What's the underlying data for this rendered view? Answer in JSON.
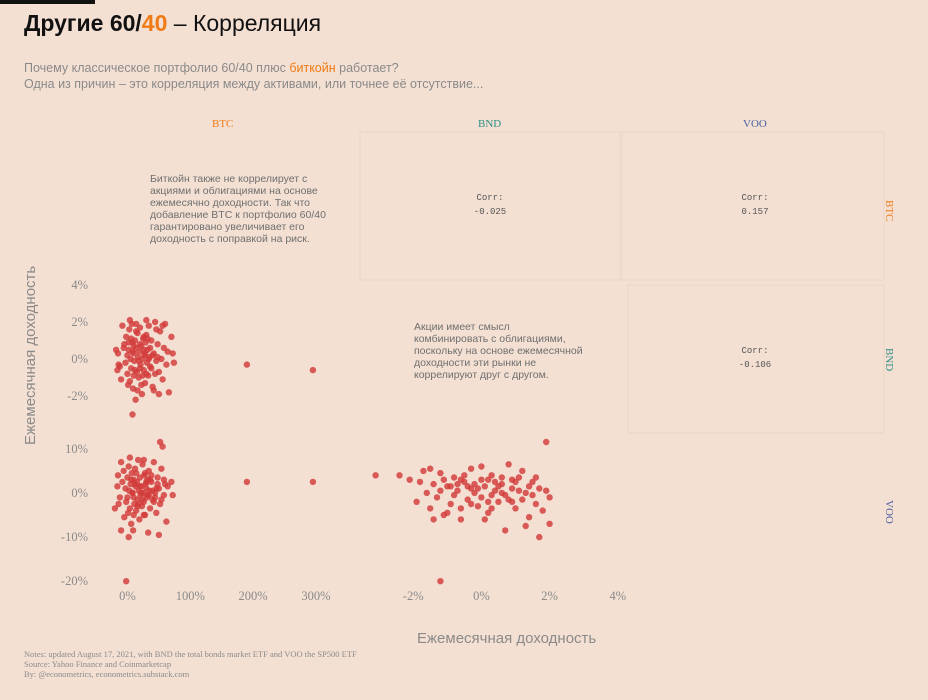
{
  "header": {
    "title_part1": "Другие 60/",
    "title_accent": "40",
    "title_part2": " – Корреляция",
    "subtitle_line1_a": "Почему классическое портфолио 60/40 плюс ",
    "subtitle_line1_accent": "биткойн",
    "subtitle_line1_b": " работает?",
    "subtitle_line2": "Одна из причин – это корреляция между активами, или точнее её отсутствие..."
  },
  "colors": {
    "BTC": "#f07b16",
    "BND": "#2f8f85",
    "VOO": "#4a5fa3",
    "points": "#d23a3a",
    "muted": "#8a8a8a"
  },
  "panels": {
    "columns": [
      "BTC",
      "BND",
      "VOO"
    ],
    "rows": [
      "BTC",
      "BND",
      "VOO"
    ]
  },
  "axes": {
    "xlabel": "Ежемесячная доходность",
    "ylabel": "Ежемесячная доходность"
  },
  "annotations": {
    "btc_note": [
      "Биткойн также не коррелирует с",
      "акциями и облигациями на основе",
      "ежемесячно доходности. Так что",
      "добавление BTC к портфолио 60/40",
      "гарантировано увеличивает его",
      "доходность с поправкой на риск."
    ],
    "bnd_note": [
      "Акции имеет смысл",
      "комбинировать с облигациями,",
      "поскольку на основе ежемесячной",
      "доходности эти рынки не",
      "коррелируют друг с другом."
    ]
  },
  "notes": {
    "line1": "Notes: updated August 17, 2021, with BND the total bonds market ETF and VOO the SP500 ETF",
    "line2": "Source: Yahoo Finance and Coinmarketcap",
    "line3": "By: @econometrics, econometrics.substack.com"
  },
  "chart_data": [
    {
      "type": "table",
      "panel": "correlations",
      "entries": [
        {
          "row": "BTC",
          "col": "BND",
          "label": "Corr:",
          "value": "-0.025"
        },
        {
          "row": "BTC",
          "col": "VOO",
          "label": "Corr:",
          "value": "0.157"
        },
        {
          "row": "BND",
          "col": "VOO",
          "label": "Corr:",
          "value": "-0.106"
        }
      ]
    },
    {
      "type": "scatter",
      "panel": "BND vs BTC",
      "x_axis": "BTC",
      "y_axis": "BND",
      "xlim": [
        -50,
        370
      ],
      "ylim": [
        -4,
        4
      ],
      "xticks": [
        "0%",
        "100%",
        "200%",
        "300%"
      ],
      "xtick_values": [
        0,
        100,
        200,
        300
      ],
      "yticks": [
        "4%",
        "2%",
        "0%",
        "-2%"
      ],
      "ytick_values": [
        4,
        2,
        0,
        -2
      ],
      "points": [
        [
          -15,
          0.3
        ],
        [
          -12,
          -0.4
        ],
        [
          -8,
          1.8
        ],
        [
          -5,
          0.8
        ],
        [
          -3,
          -0.2
        ],
        [
          -2,
          1.2
        ],
        [
          0,
          0.2
        ],
        [
          0,
          -0.8
        ],
        [
          2,
          0.5
        ],
        [
          3,
          1.6
        ],
        [
          4,
          -1.2
        ],
        [
          5,
          0.0
        ],
        [
          6,
          -0.5
        ],
        [
          7,
          1.9
        ],
        [
          8,
          0.9
        ],
        [
          9,
          -1.6
        ],
        [
          10,
          0.3
        ],
        [
          11,
          -0.1
        ],
        [
          12,
          1.0
        ],
        [
          13,
          -2.2
        ],
        [
          14,
          0.6
        ],
        [
          15,
          -0.7
        ],
        [
          16,
          1.4
        ],
        [
          17,
          0.1
        ],
        [
          18,
          -1.0
        ],
        [
          19,
          0.4
        ],
        [
          20,
          1.7
        ],
        [
          21,
          -0.3
        ],
        [
          22,
          0.7
        ],
        [
          23,
          -1.9
        ],
        [
          24,
          0.0
        ],
        [
          25,
          1.1
        ],
        [
          26,
          -0.6
        ],
        [
          27,
          0.2
        ],
        [
          28,
          -1.3
        ],
        [
          29,
          0.9
        ],
        [
          30,
          1.3
        ],
        [
          31,
          -0.2
        ],
        [
          32,
          0.5
        ],
        [
          33,
          -0.9
        ],
        [
          34,
          1.8
        ],
        [
          35,
          0.1
        ],
        [
          36,
          -0.4
        ],
        [
          38,
          1.0
        ],
        [
          40,
          -1.5
        ],
        [
          42,
          0.3
        ],
        [
          44,
          2.0
        ],
        [
          46,
          -0.1
        ],
        [
          48,
          0.8
        ],
        [
          50,
          -0.7
        ],
        [
          52,
          1.5
        ],
        [
          54,
          0.0
        ],
        [
          56,
          -1.1
        ],
        [
          58,
          0.6
        ],
        [
          60,
          1.9
        ],
        [
          62,
          -0.3
        ],
        [
          64,
          0.4
        ],
        [
          66,
          -1.8
        ],
        [
          70,
          1.2
        ],
        [
          -10,
          -1.1
        ],
        [
          -6,
          0.6
        ],
        [
          1,
          -1.4
        ],
        [
          6,
          1.1
        ],
        [
          10,
          -0.9
        ],
        [
          14,
          1.5
        ],
        [
          18,
          -0.1
        ],
        [
          22,
          -1.4
        ],
        [
          26,
          1.2
        ],
        [
          30,
          -0.8
        ],
        [
          34,
          0.0
        ],
        [
          38,
          -0.5
        ],
        [
          42,
          -1.7
        ],
        [
          46,
          1.6
        ],
        [
          -14,
          -0.3
        ],
        [
          2,
          0.9
        ],
        [
          8,
          0.4
        ],
        [
          12,
          -0.6
        ],
        [
          16,
          -1.7
        ],
        [
          20,
          0.8
        ],
        [
          24,
          -0.9
        ],
        [
          28,
          0.3
        ],
        [
          32,
          1.1
        ],
        [
          36,
          0.6
        ],
        [
          40,
          0.2
        ],
        [
          44,
          -0.8
        ],
        [
          48,
          0.1
        ],
        [
          8,
          -3.0
        ],
        [
          50,
          -1.9
        ],
        [
          72,
          0.3
        ],
        [
          74,
          -0.2
        ],
        [
          -18,
          0.5
        ],
        [
          -16,
          -0.6
        ],
        [
          4,
          2.1
        ],
        [
          14,
          1.9
        ],
        [
          30,
          2.1
        ],
        [
          56,
          1.8
        ],
        [
          20,
          -0.5
        ],
        [
          26,
          0.5
        ],
        [
          10,
          0.7
        ],
        [
          190,
          -0.3
        ],
        [
          295,
          -0.6
        ]
      ]
    },
    {
      "type": "scatter",
      "panel": "VOO vs BTC",
      "x_axis": "BTC",
      "y_axis": "VOO",
      "xlim": [
        -50,
        370
      ],
      "ylim": [
        -22,
        12
      ],
      "xticks": [
        "0%",
        "100%",
        "200%",
        "300%"
      ],
      "xtick_values": [
        0,
        100,
        200,
        300
      ],
      "yticks": [
        "10%",
        "0%",
        "-10%",
        "-20%"
      ],
      "ytick_values": [
        10,
        0,
        -10,
        -20
      ],
      "points": [
        [
          -20,
          -3.5
        ],
        [
          -15,
          4.0
        ],
        [
          -12,
          -1.0
        ],
        [
          -10,
          7.0
        ],
        [
          -8,
          2.5
        ],
        [
          -5,
          -5.5
        ],
        [
          -3,
          1.0
        ],
        [
          -2,
          -2.0
        ],
        [
          0,
          3.5
        ],
        [
          0,
          -1.0
        ],
        [
          2,
          6.0
        ],
        [
          3,
          0.5
        ],
        [
          4,
          -3.5
        ],
        [
          5,
          2.0
        ],
        [
          6,
          -7.0
        ],
        [
          7,
          4.5
        ],
        [
          8,
          0.0
        ],
        [
          9,
          -8.5
        ],
        [
          10,
          3.0
        ],
        [
          11,
          -2.5
        ],
        [
          12,
          5.5
        ],
        [
          13,
          1.5
        ],
        [
          14,
          -4.0
        ],
        [
          15,
          2.5
        ],
        [
          16,
          -1.5
        ],
        [
          17,
          7.5
        ],
        [
          18,
          0.5
        ],
        [
          19,
          -6.0
        ],
        [
          20,
          3.5
        ],
        [
          21,
          -0.5
        ],
        [
          22,
          1.5
        ],
        [
          23,
          -3.0
        ],
        [
          24,
          6.5
        ],
        [
          25,
          0.0
        ],
        [
          26,
          -2.0
        ],
        [
          27,
          4.0
        ],
        [
          28,
          -5.0
        ],
        [
          29,
          2.0
        ],
        [
          30,
          1.0
        ],
        [
          31,
          -1.0
        ],
        [
          32,
          3.0
        ],
        [
          33,
          -9.0
        ],
        [
          34,
          5.0
        ],
        [
          35,
          0.5
        ],
        [
          36,
          -3.5
        ],
        [
          38,
          2.5
        ],
        [
          40,
          -1.5
        ],
        [
          42,
          7.0
        ],
        [
          44,
          0.0
        ],
        [
          46,
          -4.5
        ],
        [
          48,
          3.5
        ],
        [
          50,
          1.0
        ],
        [
          52,
          -2.5
        ],
        [
          54,
          5.5
        ],
        [
          56,
          10.5
        ],
        [
          58,
          -0.5
        ],
        [
          60,
          2.0
        ],
        [
          62,
          -6.5
        ],
        [
          64,
          1.5
        ],
        [
          -10,
          -8.5
        ],
        [
          -6,
          5.0
        ],
        [
          1,
          -4.5
        ],
        [
          6,
          3.0
        ],
        [
          10,
          -1.0
        ],
        [
          14,
          4.5
        ],
        [
          18,
          -2.5
        ],
        [
          22,
          0.0
        ],
        [
          26,
          -5.0
        ],
        [
          30,
          2.5
        ],
        [
          34,
          -0.5
        ],
        [
          38,
          4.0
        ],
        [
          42,
          -2.0
        ],
        [
          46,
          1.0
        ],
        [
          2,
          -10.0
        ],
        [
          8,
          0.0
        ],
        [
          12,
          2.0
        ],
        [
          16,
          -3.0
        ],
        [
          20,
          1.5
        ],
        [
          24,
          -1.5
        ],
        [
          28,
          4.5
        ],
        [
          32,
          -0.5
        ],
        [
          36,
          3.0
        ],
        [
          40,
          0.5
        ],
        [
          44,
          -1.0
        ],
        [
          48,
          2.0
        ],
        [
          -2,
          -20.0
        ],
        [
          50,
          -9.5
        ],
        [
          52,
          12.0
        ],
        [
          54,
          -1.5
        ],
        [
          70,
          2.5
        ],
        [
          72,
          -0.5
        ],
        [
          -16,
          1.5
        ],
        [
          -14,
          -2.5
        ],
        [
          4,
          8.0
        ],
        [
          10,
          -5.0
        ],
        [
          26,
          7.5
        ],
        [
          58,
          3.0
        ],
        [
          190,
          2.5
        ],
        [
          295,
          2.5
        ]
      ]
    },
    {
      "type": "scatter",
      "panel": "VOO vs BND",
      "x_axis": "BND",
      "y_axis": "VOO",
      "xlim": [
        -3.5,
        4.3
      ],
      "ylim": [
        -22,
        12
      ],
      "xticks": [
        "-2%",
        "0%",
        "2%",
        "4%"
      ],
      "xtick_values": [
        -2,
        0,
        2,
        4
      ],
      "yticks": [
        "10%",
        "0%",
        "-10%",
        "-20%"
      ],
      "ytick_values": [
        10,
        0,
        -10,
        -20
      ],
      "points": [
        [
          -3.1,
          4.0
        ],
        [
          -2.4,
          4.0
        ],
        [
          -2.1,
          3.0
        ],
        [
          -1.9,
          -2.0
        ],
        [
          -1.8,
          2.5
        ],
        [
          -1.7,
          5.0
        ],
        [
          -1.6,
          0.0
        ],
        [
          -1.5,
          -3.5
        ],
        [
          -1.4,
          2.0
        ],
        [
          -1.3,
          -1.0
        ],
        [
          -1.2,
          4.5
        ],
        [
          -1.1,
          -5.0
        ],
        [
          -1.0,
          1.5
        ],
        [
          -0.9,
          -2.5
        ],
        [
          -0.8,
          3.5
        ],
        [
          -0.7,
          0.5
        ],
        [
          -0.6,
          -6.0
        ],
        [
          -0.5,
          2.5
        ],
        [
          -0.4,
          -1.5
        ],
        [
          -0.3,
          5.5
        ],
        [
          -0.2,
          0.0
        ],
        [
          -0.1,
          -3.0
        ],
        [
          0.0,
          3.0
        ],
        [
          0.0,
          -1.0
        ],
        [
          0.1,
          1.5
        ],
        [
          0.2,
          -4.5
        ],
        [
          0.3,
          4.0
        ],
        [
          0.4,
          0.5
        ],
        [
          0.5,
          -2.0
        ],
        [
          0.6,
          2.0
        ],
        [
          0.7,
          -0.5
        ],
        [
          0.8,
          6.5
        ],
        [
          0.9,
          1.0
        ],
        [
          1.0,
          -3.5
        ],
        [
          1.1,
          3.5
        ],
        [
          1.2,
          -1.5
        ],
        [
          1.3,
          0.0
        ],
        [
          1.4,
          -5.5
        ],
        [
          1.5,
          2.5
        ],
        [
          1.6,
          -2.5
        ],
        [
          1.7,
          1.0
        ],
        [
          1.8,
          -4.0
        ],
        [
          1.9,
          0.5
        ],
        [
          2.0,
          -1.0
        ],
        [
          -1.5,
          5.5
        ],
        [
          -1.2,
          0.5
        ],
        [
          -0.9,
          1.5
        ],
        [
          -0.6,
          3.0
        ],
        [
          -0.3,
          -2.5
        ],
        [
          0.0,
          6.0
        ],
        [
          0.3,
          -0.5
        ],
        [
          0.6,
          3.5
        ],
        [
          0.9,
          -2.0
        ],
        [
          1.2,
          5.0
        ],
        [
          1.5,
          -0.5
        ],
        [
          -0.8,
          -0.5
        ],
        [
          -0.4,
          1.5
        ],
        [
          0.2,
          3.0
        ],
        [
          0.5,
          1.5
        ],
        [
          0.8,
          -1.5
        ],
        [
          1.1,
          0.5
        ],
        [
          -1.0,
          -4.5
        ],
        [
          -0.5,
          4.0
        ],
        [
          0.1,
          -6.0
        ],
        [
          0.7,
          -8.5
        ],
        [
          1.3,
          -7.5
        ],
        [
          1.7,
          -10.0
        ],
        [
          2.0,
          -7.0
        ],
        [
          -1.2,
          -20.0
        ],
        [
          1.9,
          15.5
        ],
        [
          -0.2,
          2.0
        ],
        [
          0.4,
          2.5
        ],
        [
          -0.7,
          2.0
        ],
        [
          0.2,
          -2.0
        ],
        [
          -1.4,
          -6.0
        ],
        [
          1.0,
          2.5
        ],
        [
          -0.1,
          1.0
        ],
        [
          0.6,
          0.0
        ],
        [
          1.4,
          1.5
        ],
        [
          -1.1,
          3.0
        ],
        [
          -0.3,
          1.0
        ],
        [
          0.9,
          3.0
        ],
        [
          -0.6,
          -3.5
        ],
        [
          0.3,
          -3.5
        ],
        [
          1.6,
          3.5
        ]
      ]
    }
  ]
}
